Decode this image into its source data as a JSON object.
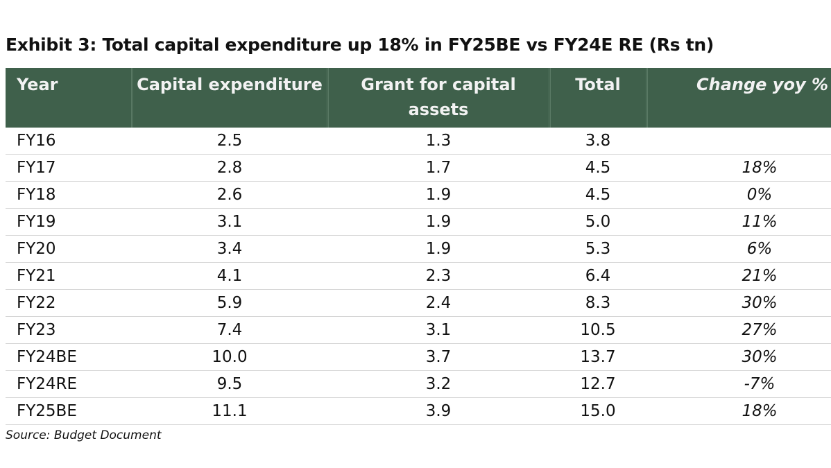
{
  "title": "Exhibit 3: Total capital expenditure up 18% in FY25BE vs FY24E RE (Rs tn)",
  "table": {
    "header": [
      "Year",
      "Capital expenditure",
      "Grant for capital assets",
      "Total",
      "Change yoy %"
    ],
    "rows": [
      [
        "FY16",
        "2.5",
        "1.3",
        "3.8",
        null
      ],
      [
        "FY17",
        "2.8",
        "1.7",
        "4.5",
        "18%"
      ],
      [
        "FY18",
        "2.6",
        "1.9",
        "4.5",
        "0%"
      ],
      [
        "FY19",
        "3.1",
        "1.9",
        "5.0",
        "11%"
      ],
      [
        "FY20",
        "3.4",
        "1.9",
        "5.3",
        "6%"
      ],
      [
        "FY21",
        "4.1",
        "2.3",
        "6.4",
        "21%"
      ],
      [
        "FY22",
        "5.9",
        "2.4",
        "8.3",
        "30%"
      ],
      [
        "FY23",
        "7.4",
        "3.1",
        "10.5",
        "27%"
      ],
      [
        "FY24BE",
        "10.0",
        "3.7",
        "13.7",
        "30%"
      ],
      [
        "FY24RE",
        "9.5",
        "3.2",
        "12.7",
        "-7%"
      ],
      [
        "FY25BE",
        "11.1",
        "3.9",
        "15.0",
        "18%"
      ]
    ]
  },
  "source": "Source: Budget Document"
}
